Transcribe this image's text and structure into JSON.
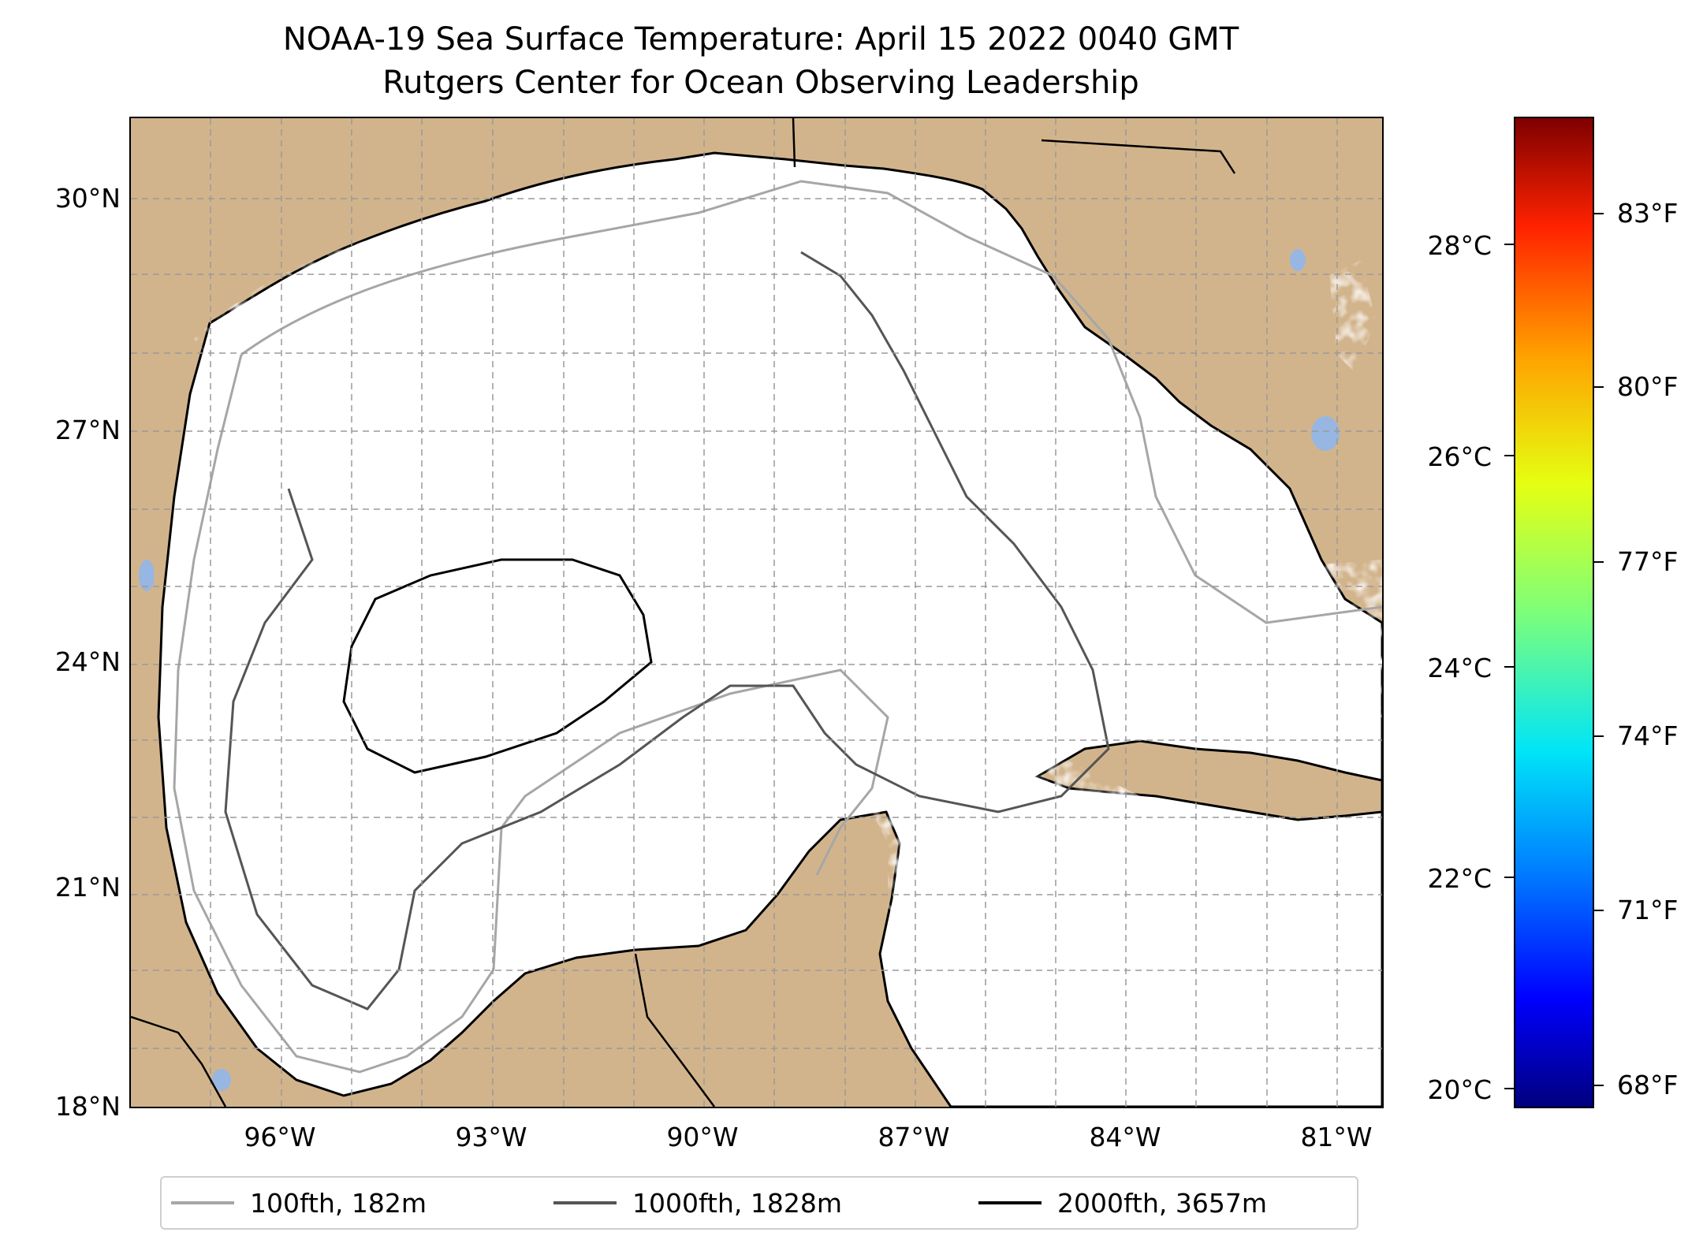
{
  "title": {
    "line1": "NOAA-19 Sea Surface Temperature: April 15 2022 0040 GMT",
    "line2": "Rutgers Center for Ocean Observing Leadership"
  },
  "map": {
    "lat_labels": [
      "30°N",
      "27°N",
      "24°N",
      "21°N",
      "18°N"
    ],
    "lon_labels": [
      "96°W",
      "93°W",
      "90°W",
      "87°W",
      "84°W",
      "81°W"
    ],
    "gridlines": "dashed",
    "land_color": "#d2b48c",
    "lake_color": "#97b6e1"
  },
  "colorbar": {
    "celsius_labels": [
      "28°C",
      "26°C",
      "24°C",
      "22°C",
      "20°C"
    ],
    "fahrenheit_labels": [
      "83°F",
      "80°F",
      "77°F",
      "74°F",
      "71°F",
      "68°F"
    ],
    "colormap": "jet"
  },
  "legend": {
    "items": [
      {
        "label": "100fth, 182m",
        "color": "#a6a6a6"
      },
      {
        "label": "1000fth, 1828m",
        "color": "#555555"
      },
      {
        "label": "2000fth, 3657m",
        "color": "#000000"
      }
    ]
  }
}
